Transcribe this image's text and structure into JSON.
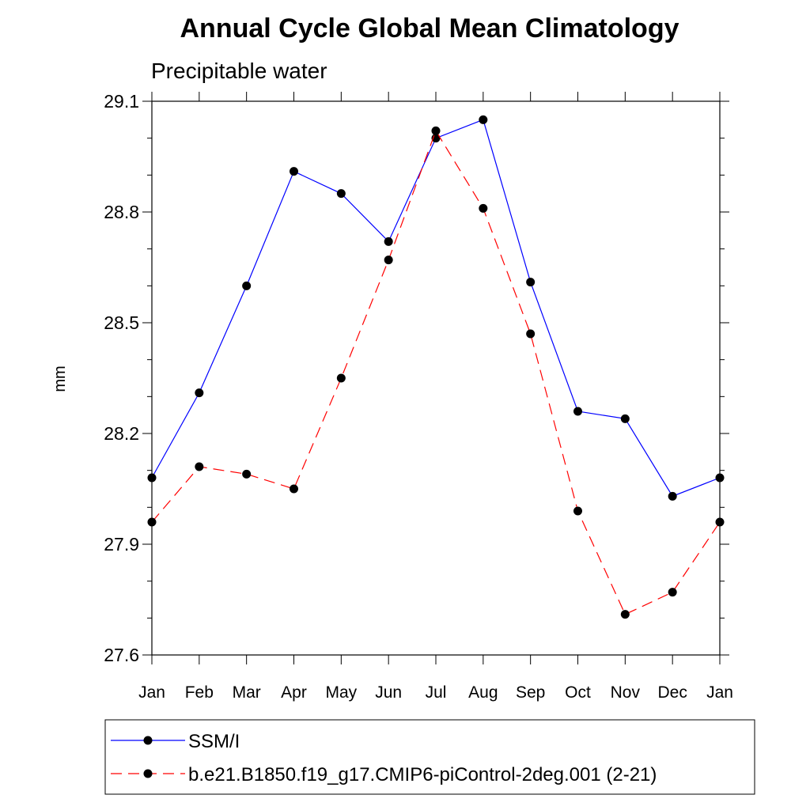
{
  "chart_data": {
    "type": "line",
    "title": "Annual Cycle Global Mean Climatology",
    "subtitle": "Precipitable water",
    "xlabel": "",
    "ylabel": "mm",
    "categories": [
      "Jan",
      "Feb",
      "Mar",
      "Apr",
      "May",
      "Jun",
      "Jul",
      "Aug",
      "Sep",
      "Oct",
      "Nov",
      "Dec",
      "Jan"
    ],
    "ylim": [
      27.6,
      29.1
    ],
    "yticks": [
      "27.6",
      "27.9",
      "28.2",
      "28.5",
      "28.8",
      "29.1"
    ],
    "grid": false,
    "legend_position": "bottom",
    "series": [
      {
        "name": "SSM/I",
        "color": "#0000ff",
        "dash": "solid",
        "values": [
          28.08,
          28.31,
          28.6,
          28.91,
          28.85,
          28.72,
          29.0,
          29.05,
          28.61,
          28.26,
          28.24,
          28.03,
          28.08
        ]
      },
      {
        "name": "b.e21.B1850.f19_g17.CMIP6-piControl-2deg.001 (2-21)",
        "color": "#ff0000",
        "dash": "dashed",
        "values": [
          27.96,
          28.11,
          28.09,
          28.05,
          28.35,
          28.67,
          29.02,
          28.81,
          28.47,
          27.99,
          27.71,
          27.77,
          27.96
        ]
      }
    ]
  }
}
